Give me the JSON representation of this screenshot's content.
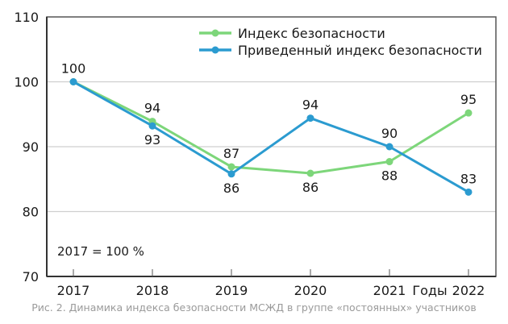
{
  "chart_data": {
    "type": "line",
    "title": "",
    "xlabel": "Годы",
    "ylabel": "",
    "x": [
      "2017",
      "2018",
      "2019",
      "2020",
      "2021",
      "2022"
    ],
    "ylim": [
      70,
      110
    ],
    "yticks": [
      70,
      80,
      90,
      100,
      110
    ],
    "grid": true,
    "legend_position": "top-right",
    "note": "2017 = 100 %",
    "series": [
      {
        "name": "Индекс безопасности",
        "color": "#7dd67a",
        "values": [
          100,
          93.9,
          86.9,
          85.9,
          87.7,
          95.2
        ],
        "labels": [
          "100",
          "94",
          "87",
          "86",
          "88",
          "95"
        ],
        "label_pos": [
          "above",
          "above",
          "above",
          "below",
          "below",
          "above"
        ]
      },
      {
        "name": "Приведенный индекс безопасности",
        "color": "#2b9bd0",
        "values": [
          100,
          93.2,
          85.8,
          94.4,
          90.0,
          83.0
        ],
        "labels": [
          "",
          "93",
          "86",
          "94",
          "90",
          "83"
        ],
        "label_pos": [
          "above",
          "below",
          "below",
          "above",
          "above",
          "above"
        ]
      }
    ]
  },
  "caption": "Рис. 2. Динамика индекса безопасности МСЖД в группе «постоянных» участников"
}
